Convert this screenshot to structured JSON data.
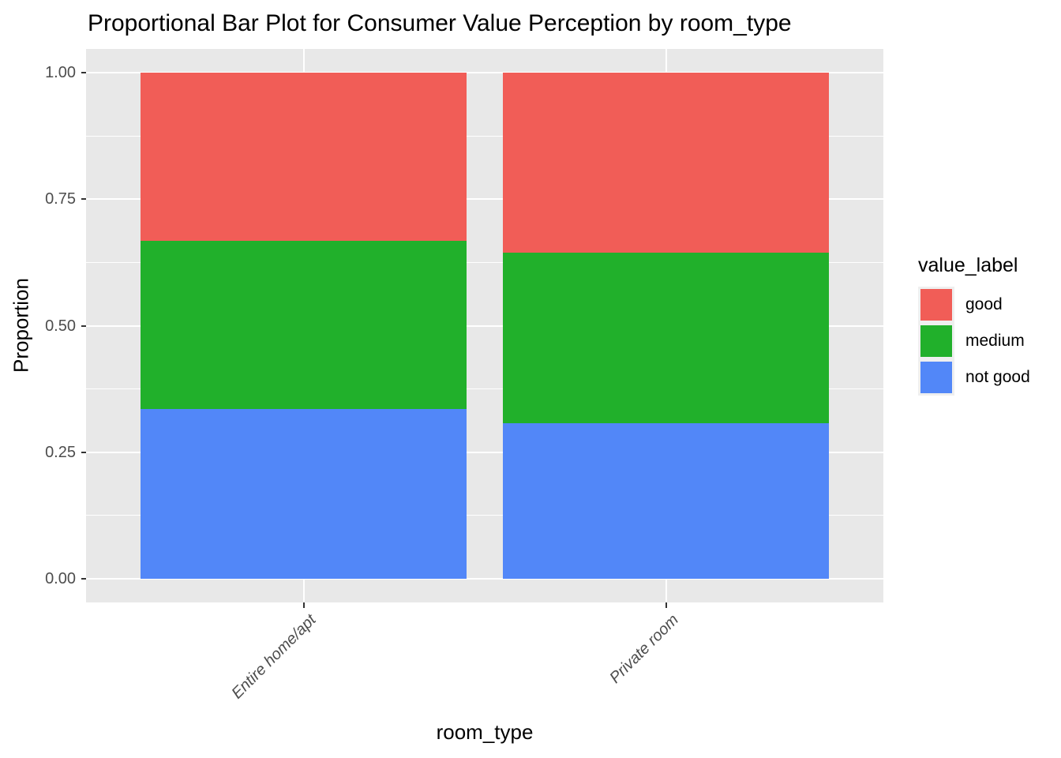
{
  "chart": {
    "title": "Proportional Bar Plot for Consumer Value Perception by room_type",
    "xlabel": "room_type",
    "ylabel": "Proportion"
  },
  "chart_data": {
    "type": "bar",
    "stacked": true,
    "proportional": true,
    "title": "Proportional Bar Plot for Consumer Value Perception by room_type",
    "xlabel": "room_type",
    "ylabel": "Proportion",
    "categories": [
      "Entire home/apt",
      "Private room"
    ],
    "series": [
      {
        "name": "good",
        "color": "#F15D57",
        "values": [
          0.333,
          0.355
        ]
      },
      {
        "name": "medium",
        "color": "#21B02B",
        "values": [
          0.332,
          0.338
        ]
      },
      {
        "name": "not good",
        "color": "#5287F8",
        "values": [
          0.335,
          0.307
        ]
      }
    ],
    "stack_order_bottom_to_top": [
      "not good",
      "medium",
      "good"
    ],
    "ylim": [
      0,
      1
    ],
    "yticks": [
      0,
      0.25,
      0.5,
      0.75,
      1
    ],
    "ytick_labels": [
      "0.00",
      "0.25",
      "0.50",
      "0.75",
      "1.00"
    ],
    "yticks_minor": [
      0.125,
      0.375,
      0.625,
      0.875
    ],
    "grid": true,
    "legend_position": "right"
  },
  "legend": {
    "title": "value_label",
    "entries": [
      {
        "label": "good",
        "color": "#F15D57"
      },
      {
        "label": "medium",
        "color": "#21B02B"
      },
      {
        "label": "not good",
        "color": "#5287F8"
      }
    ]
  },
  "colors": {
    "panel_background": "#E8E8E8",
    "gridline_major": "#FFFFFF",
    "gridline_minor": "#FFFFFF",
    "axis_text": "#4D4D4D",
    "tick_mark": "#333333",
    "title_text": "#000000",
    "background": "#FFFFFF"
  }
}
